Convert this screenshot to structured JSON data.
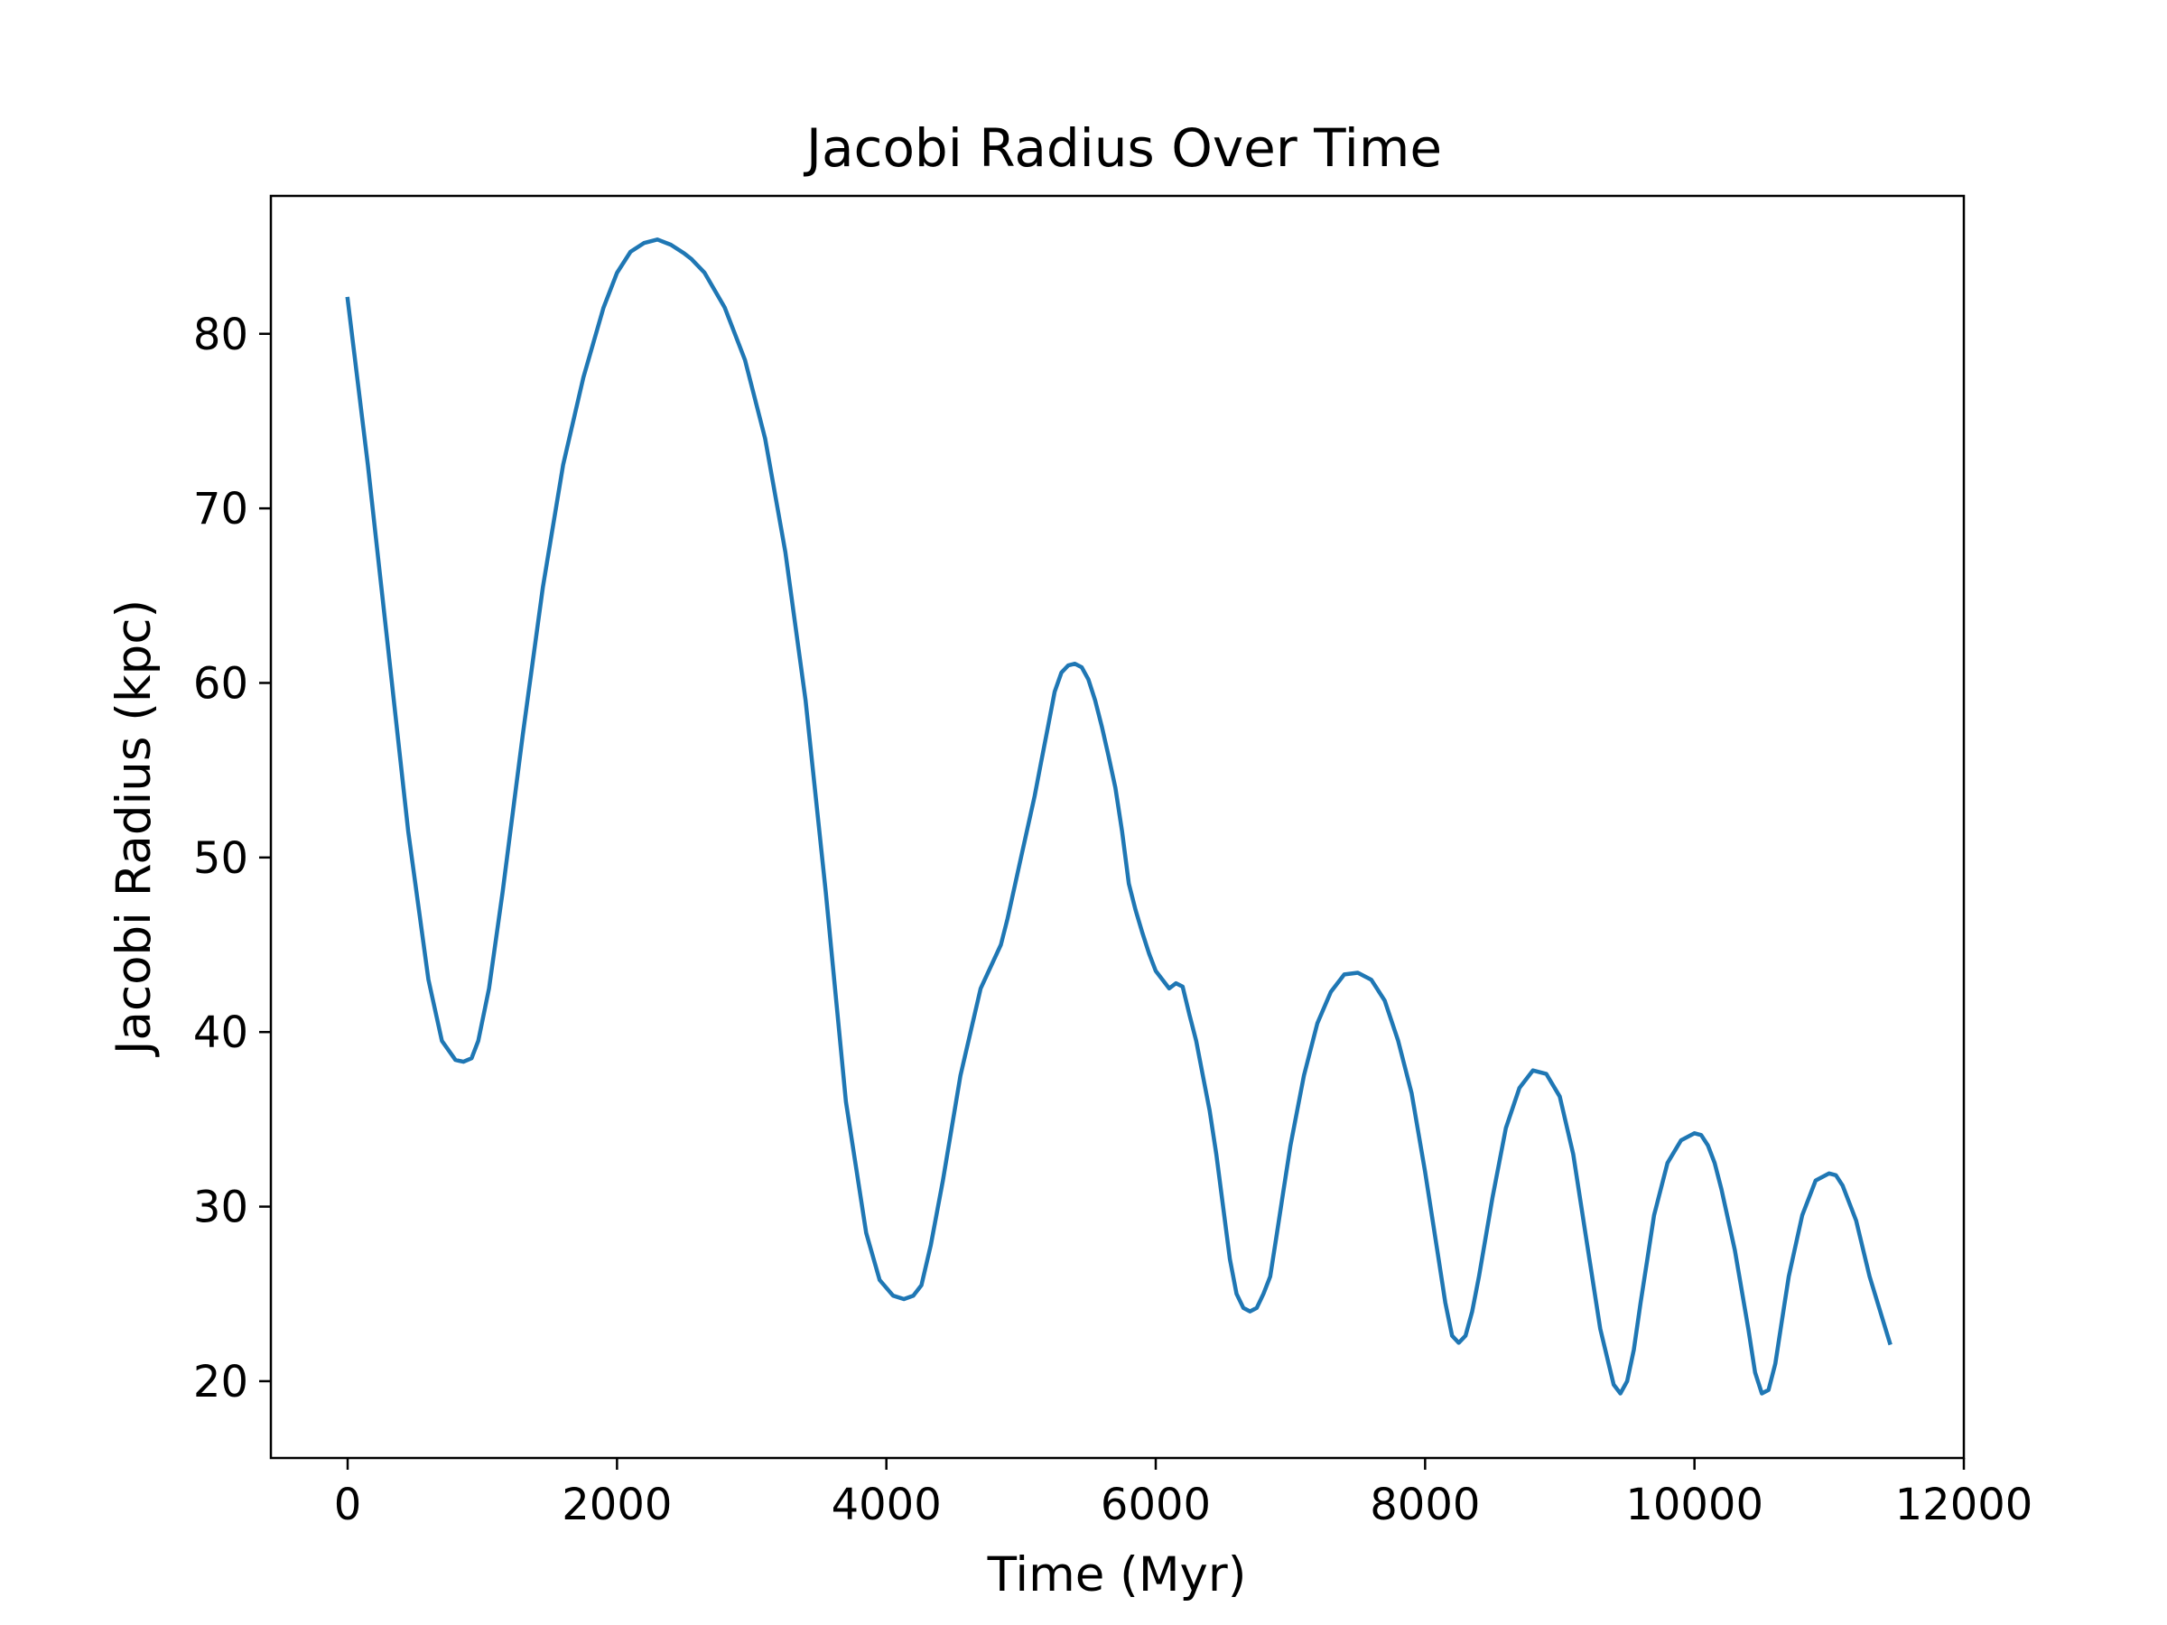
{
  "chart_data": {
    "type": "line",
    "title": "Jacobi Radius Over Time",
    "xlabel": "Time (Myr)",
    "ylabel": "Jacobi Radius (kpc)",
    "xlim": [
      -570,
      12000
    ],
    "ylim": [
      15.6,
      87.9
    ],
    "xticks": [
      0,
      2000,
      4000,
      6000,
      8000,
      10000,
      12000
    ],
    "xtick_labels": [
      "0",
      "2000",
      "4000",
      "6000",
      "8000",
      "10000",
      "12000"
    ],
    "yticks": [
      20,
      30,
      40,
      50,
      60,
      70,
      80
    ],
    "ytick_labels": [
      "20",
      "30",
      "40",
      "50",
      "60",
      "70",
      "80"
    ],
    "grid": false,
    "line_color": "#1f77b4",
    "series": [
      {
        "x": [
          0,
          150,
          300,
          450,
          600,
          700,
          800,
          860,
          920,
          970,
          1050,
          1150,
          1300,
          1450,
          1600,
          1750,
          1900,
          2000,
          2100,
          2200,
          2300,
          2400,
          2500,
          2550,
          2650,
          2800,
          2950,
          3100,
          3250,
          3400,
          3550,
          3700,
          3850,
          3950,
          4050,
          4130,
          4200,
          4260,
          4330,
          4420,
          4550,
          4700,
          4850,
          4900,
          5000,
          5100,
          5150,
          5200,
          5250,
          5300,
          5350,
          5400,
          5450,
          5500,
          5550,
          5600,
          5650,
          5700,
          5750,
          5800,
          5850,
          5900,
          5950,
          6000,
          6100,
          6150,
          6200,
          6250,
          6300,
          6350,
          6400,
          6450,
          6500,
          6550,
          6600,
          6650,
          6700,
          6750,
          6800,
          6850,
          6900,
          6950,
          7000,
          7100,
          7200,
          7300,
          7400,
          7500,
          7600,
          7700,
          7800,
          7900,
          8000,
          8100,
          8150,
          8200,
          8250,
          8300,
          8350,
          8400,
          8500,
          8600,
          8700,
          8800,
          8900,
          9000,
          9100,
          9200,
          9300,
          9400,
          9450,
          9500,
          9550,
          9600,
          9650,
          9700,
          9800,
          9900,
          10000,
          10050,
          10100,
          10150,
          10200,
          10300,
          10400,
          10450,
          10500,
          10550,
          10600,
          10650,
          10700,
          10800,
          10900,
          11000,
          11050,
          11100,
          11200,
          11300,
          11450
        ],
        "y": [
          82,
          72.5,
          62,
          51.5,
          43,
          39.5,
          38.4,
          38.3,
          38.5,
          39.5,
          42.5,
          48,
          57,
          65.5,
          72.5,
          77.5,
          81.5,
          83.5,
          84.7,
          85.2,
          85.4,
          85.1,
          84.6,
          84.3,
          83.5,
          81.5,
          78.5,
          74,
          67.5,
          59,
          48,
          36,
          28.5,
          25.8,
          24.9,
          24.7,
          24.9,
          25.5,
          27.8,
          31.5,
          37.5,
          42.5,
          45,
          46.5,
          50,
          53.5,
          55.5,
          57.5,
          59.5,
          60.6,
          61,
          61.1,
          60.9,
          60.2,
          59,
          57.5,
          55.8,
          54,
          51.5,
          48.5,
          47,
          45.7,
          44.5,
          43.5,
          42.5,
          42.8,
          42.6,
          41,
          39.5,
          37.5,
          35.5,
          33,
          30,
          27,
          25,
          24.2,
          24,
          24.2,
          25,
          26,
          28.5,
          31,
          33.5,
          37.5,
          40.5,
          42.3,
          43.3,
          43.4,
          43,
          41.8,
          39.5,
          36.5,
          32,
          27,
          24.5,
          22.6,
          22.2,
          22.6,
          24,
          26,
          30.5,
          34.5,
          36.8,
          37.8,
          37.6,
          36.3,
          33,
          28,
          23,
          19.8,
          19.3,
          20,
          21.8,
          24.5,
          27,
          29.5,
          32.5,
          33.8,
          34.2,
          34.1,
          33.5,
          32.5,
          31,
          27.5,
          23,
          20.5,
          19.3,
          19.5,
          21,
          23.5,
          26,
          29.5,
          31.5,
          31.9,
          31.8,
          31.2,
          29.2,
          26,
          22.2
        ]
      }
    ]
  }
}
